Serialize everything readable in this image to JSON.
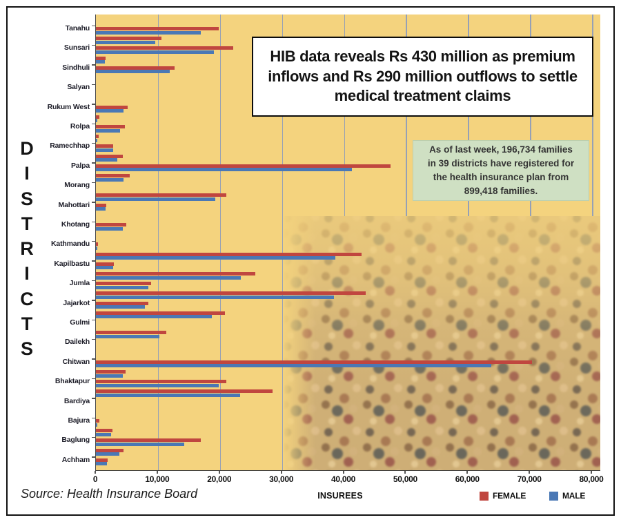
{
  "headline": {
    "text": "HIB data reveals Rs 430 million as premium inflows and Rs 290 million outflows to settle medical treatment claims",
    "lines": [
      "HIB data reveals Rs 430 million as premium",
      "inflows and Rs 290 million outflows to settle",
      "medical treatment claims"
    ]
  },
  "info_box": {
    "text": "As of last week, 196,734 families in 39 districts have registered for the health insurance plan from 899,418 families.",
    "lines": [
      "As of last week, 196,734 families",
      "in 39 districts have registered for",
      "the health insurance plan from",
      "899,418 families."
    ]
  },
  "source": {
    "label": "Source: Health Insurance Board"
  },
  "legend": [
    {
      "label": "FEMALE",
      "color": "#c0463f"
    },
    {
      "label": "MALE",
      "color": "#4a78b5"
    }
  ],
  "colors": {
    "plot_background": "#f4d37e",
    "gridline": "#95a0b6",
    "female_bar": "#c0463f",
    "male_bar": "#4a78b5",
    "info_box_bg": "#cfe0c3",
    "frame": "#111111"
  },
  "chart_data": {
    "type": "bar",
    "orientation": "horizontal",
    "title": "",
    "x_axis": {
      "title": "INSUREES",
      "min": 0,
      "max": 80000,
      "ticks": [
        "0",
        "10,000",
        "20,000",
        "30,000",
        "40,000",
        "50,000",
        "60,000",
        "70,000",
        "80,000"
      ]
    },
    "y_axis": {
      "title": "DISTRICTS"
    },
    "grid": true,
    "legend_position": "bottom-right",
    "categories": [
      "Tanahu",
      "",
      "Sunsari",
      "",
      "Sindhuli",
      "",
      "Salyan",
      "",
      "Rukum West",
      "",
      "Rolpa",
      "",
      "Ramechhap",
      "",
      "Palpa",
      "",
      "Morang",
      "",
      "Mahottari",
      "",
      "Khotang",
      "",
      "Kathmandu",
      "",
      "Kapilbastu",
      "",
      "Jumla",
      "",
      "Jajarkot",
      "",
      "Gulmi",
      "",
      "Dailekh",
      "",
      "Chitwan",
      "",
      "Bhaktapur",
      "",
      "Bardiya",
      "",
      "Bajura",
      "",
      "Baglung",
      "",
      "Achham"
    ],
    "series": [
      {
        "name": "FEMALE",
        "color": "#c0463f",
        "values": [
          19800,
          10600,
          22100,
          1600,
          12700,
          0,
          0,
          0,
          5100,
          600,
          4700,
          400,
          2800,
          4300,
          47500,
          5500,
          0,
          21000,
          1700,
          0,
          4900,
          0,
          300,
          42800,
          2900,
          25700,
          8900,
          43500,
          8500,
          20800,
          0,
          11300,
          0,
          0,
          70300,
          4800,
          21000,
          28500,
          0,
          0,
          600,
          2700,
          16900,
          4500,
          1900
        ]
      },
      {
        "name": "MALE",
        "color": "#4a78b5",
        "values": [
          16900,
          9600,
          19000,
          1500,
          11900,
          0,
          0,
          0,
          4400,
          200,
          3900,
          100,
          2800,
          3500,
          41300,
          4500,
          0,
          19200,
          1600,
          0,
          4300,
          0,
          100,
          38600,
          2800,
          23400,
          8500,
          38400,
          7900,
          18700,
          0,
          10200,
          0,
          0,
          63700,
          4300,
          19800,
          23300,
          0,
          0,
          200,
          2500,
          14200,
          3800,
          1800
        ]
      }
    ]
  }
}
